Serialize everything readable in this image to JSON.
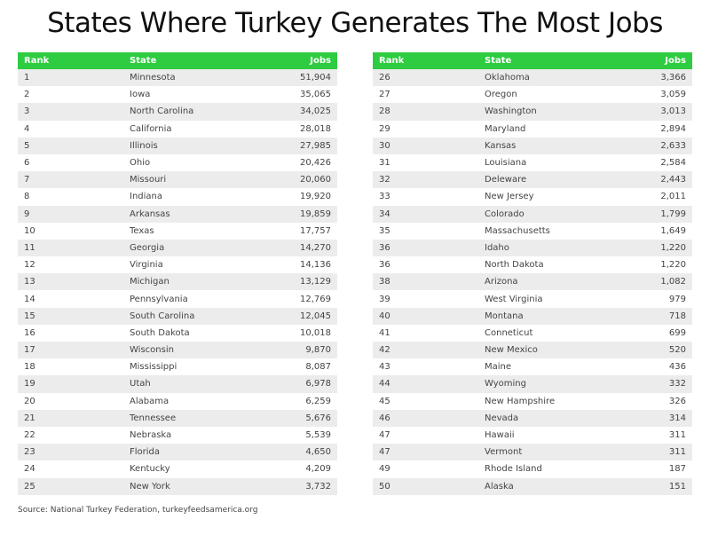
{
  "title": "States Where Turkey Generates The Most Jobs",
  "columns": {
    "rank": "Rank",
    "state": "State",
    "jobs": "Jobs"
  },
  "colors": {
    "header": "#2ecc40",
    "stripe": "#ececec"
  },
  "left_table": [
    {
      "rank": "1",
      "state": "Minnesota",
      "jobs": "51,904"
    },
    {
      "rank": "2",
      "state": "Iowa",
      "jobs": "35,065"
    },
    {
      "rank": "3",
      "state": "North Carolina",
      "jobs": "34,025"
    },
    {
      "rank": "4",
      "state": "California",
      "jobs": "28,018"
    },
    {
      "rank": "5",
      "state": "Illinois",
      "jobs": "27,985"
    },
    {
      "rank": "6",
      "state": "Ohio",
      "jobs": "20,426"
    },
    {
      "rank": "7",
      "state": "Missouri",
      "jobs": "20,060"
    },
    {
      "rank": "8",
      "state": "Indiana",
      "jobs": "19,920"
    },
    {
      "rank": "9",
      "state": "Arkansas",
      "jobs": "19,859"
    },
    {
      "rank": "10",
      "state": "Texas",
      "jobs": "17,757"
    },
    {
      "rank": "11",
      "state": "Georgia",
      "jobs": "14,270"
    },
    {
      "rank": "12",
      "state": "Virginia",
      "jobs": "14,136"
    },
    {
      "rank": "13",
      "state": "Michigan",
      "jobs": "13,129"
    },
    {
      "rank": "14",
      "state": "Pennsylvania",
      "jobs": "12,769"
    },
    {
      "rank": "15",
      "state": "South Carolina",
      "jobs": "12,045"
    },
    {
      "rank": "16",
      "state": "South Dakota",
      "jobs": "10,018"
    },
    {
      "rank": "17",
      "state": "Wisconsin",
      "jobs": "9,870"
    },
    {
      "rank": "18",
      "state": "Mississippi",
      "jobs": "8,087"
    },
    {
      "rank": "19",
      "state": "Utah",
      "jobs": "6,978"
    },
    {
      "rank": "20",
      "state": "Alabama",
      "jobs": "6,259"
    },
    {
      "rank": "21",
      "state": "Tennessee",
      "jobs": "5,676"
    },
    {
      "rank": "22",
      "state": "Nebraska",
      "jobs": "5,539"
    },
    {
      "rank": "23",
      "state": "Florida",
      "jobs": "4,650"
    },
    {
      "rank": "24",
      "state": "Kentucky",
      "jobs": "4,209"
    },
    {
      "rank": "25",
      "state": "New York",
      "jobs": "3,732"
    }
  ],
  "right_table": [
    {
      "rank": "26",
      "state": "Oklahoma",
      "jobs": "3,366"
    },
    {
      "rank": "27",
      "state": "Oregon",
      "jobs": "3,059"
    },
    {
      "rank": "28",
      "state": "Washington",
      "jobs": "3,013"
    },
    {
      "rank": "29",
      "state": "Maryland",
      "jobs": "2,894"
    },
    {
      "rank": "30",
      "state": "Kansas",
      "jobs": "2,633"
    },
    {
      "rank": "31",
      "state": "Louisiana",
      "jobs": "2,584"
    },
    {
      "rank": "32",
      "state": "Deleware",
      "jobs": "2,443"
    },
    {
      "rank": "33",
      "state": "New Jersey",
      "jobs": "2,011"
    },
    {
      "rank": "34",
      "state": "Colorado",
      "jobs": "1,799"
    },
    {
      "rank": "35",
      "state": "Massachusetts",
      "jobs": "1,649"
    },
    {
      "rank": "36",
      "state": "Idaho",
      "jobs": "1,220"
    },
    {
      "rank": "36",
      "state": "North Dakota",
      "jobs": "1,220"
    },
    {
      "rank": "38",
      "state": "Arizona",
      "jobs": "1,082"
    },
    {
      "rank": "39",
      "state": "West Virginia",
      "jobs": "979"
    },
    {
      "rank": "40",
      "state": "Montana",
      "jobs": "718"
    },
    {
      "rank": "41",
      "state": "Conneticut",
      "jobs": "699"
    },
    {
      "rank": "42",
      "state": "New Mexico",
      "jobs": "520"
    },
    {
      "rank": "43",
      "state": "Maine",
      "jobs": "436"
    },
    {
      "rank": "44",
      "state": "Wyoming",
      "jobs": "332"
    },
    {
      "rank": "45",
      "state": "New Hampshire",
      "jobs": "326"
    },
    {
      "rank": "46",
      "state": "Nevada",
      "jobs": "314"
    },
    {
      "rank": "47",
      "state": "Hawaii",
      "jobs": "311"
    },
    {
      "rank": "47",
      "state": "Vermont",
      "jobs": "311"
    },
    {
      "rank": "49",
      "state": "Rhode Island",
      "jobs": "187"
    },
    {
      "rank": "50",
      "state": "Alaska",
      "jobs": "151"
    }
  ],
  "source": "Source: National Turkey Federation, turkeyfeedsamerica.org"
}
